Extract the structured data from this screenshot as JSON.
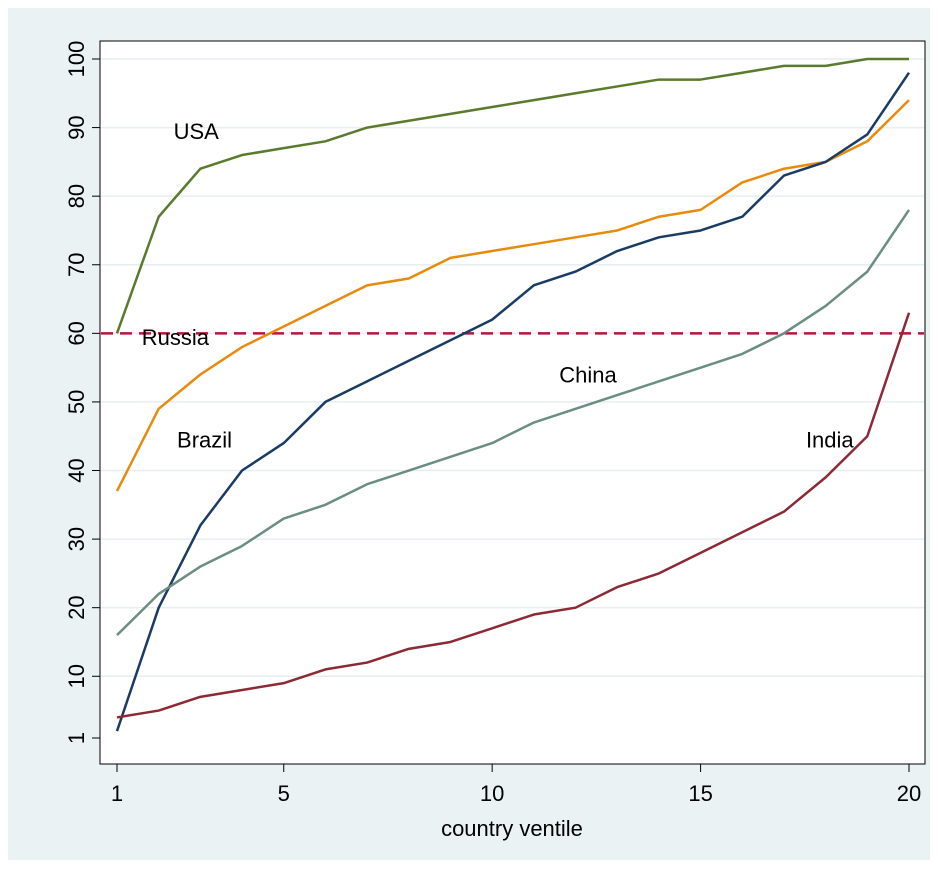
{
  "chart_data": {
    "type": "line",
    "xlabel": "country ventile",
    "ylabel": "",
    "xlim": [
      1,
      20
    ],
    "ylim": [
      1,
      100
    ],
    "x": [
      1,
      2,
      3,
      4,
      5,
      6,
      7,
      8,
      9,
      10,
      11,
      12,
      13,
      14,
      15,
      16,
      17,
      18,
      19,
      20
    ],
    "xticks": [
      1,
      5,
      10,
      15,
      20
    ],
    "yticks": [
      1,
      10,
      20,
      30,
      40,
      50,
      60,
      70,
      80,
      90,
      100
    ],
    "grid": true,
    "reference_line": {
      "y": 60,
      "style": "dashed",
      "color": "#b5163f"
    },
    "series": [
      {
        "name": "USA",
        "color": "#5a7a2e",
        "values": [
          60,
          77,
          84,
          86,
          87,
          88,
          90,
          91,
          92,
          93,
          94,
          95,
          96,
          97,
          97,
          98,
          99,
          99,
          100,
          100
        ]
      },
      {
        "name": "Russia",
        "color": "#e88a0c",
        "values": [
          37,
          49,
          54,
          58,
          61,
          64,
          67,
          68,
          71,
          72,
          73,
          74,
          75,
          77,
          78,
          82,
          84,
          85,
          88,
          94
        ]
      },
      {
        "name": "Brazil",
        "color": "#1a3b63",
        "values": [
          2,
          20,
          32,
          40,
          44,
          50,
          53,
          56,
          59,
          62,
          67,
          69,
          72,
          74,
          75,
          77,
          83,
          85,
          89,
          98
        ]
      },
      {
        "name": "China",
        "color": "#6b8e82",
        "values": [
          16,
          22,
          26,
          29,
          33,
          35,
          38,
          40,
          42,
          44,
          47,
          49,
          51,
          53,
          55,
          57,
          60,
          64,
          69,
          78
        ]
      },
      {
        "name": "India",
        "color": "#8b2a35",
        "values": [
          4,
          5,
          7,
          8,
          9,
          11,
          12,
          14,
          15,
          17,
          19,
          20,
          23,
          25,
          28,
          31,
          34,
          39,
          45,
          63
        ]
      }
    ],
    "annotations": [
      {
        "text": "USA",
        "x": 2.9,
        "y": 89.5
      },
      {
        "text": "Russia",
        "x": 2.4,
        "y": 59.5
      },
      {
        "text": "Brazil",
        "x": 3.1,
        "y": 44.5
      },
      {
        "text": "China",
        "x": 12.3,
        "y": 54
      },
      {
        "text": "India",
        "x": 18.1,
        "y": 44.5
      }
    ]
  }
}
